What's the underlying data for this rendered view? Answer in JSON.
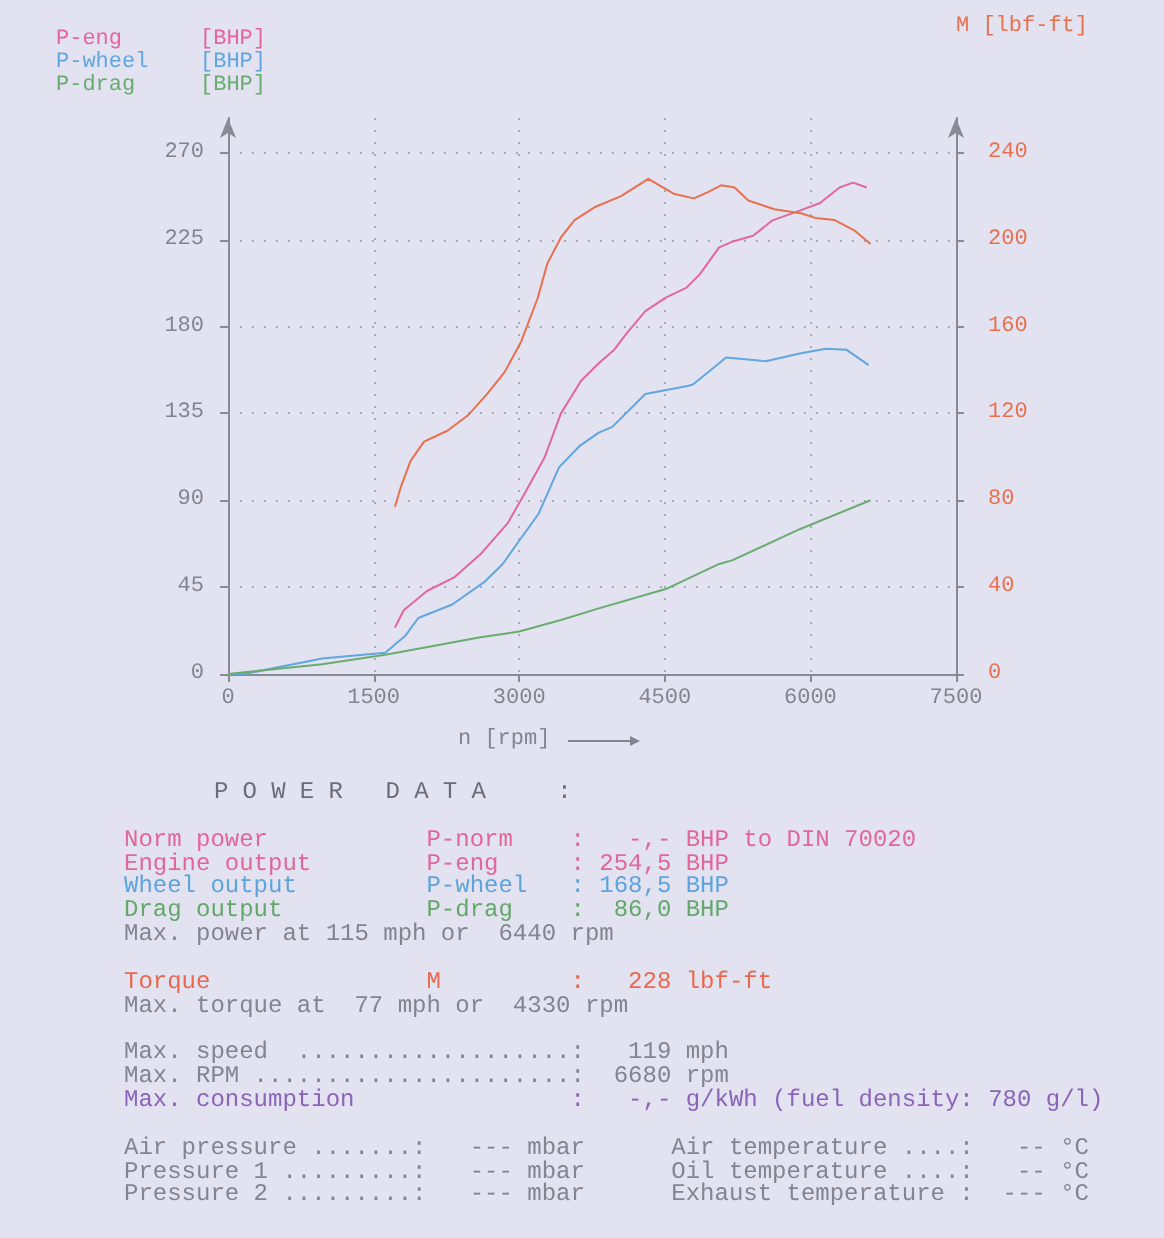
{
  "chart_data": {
    "type": "line",
    "xlabel": "n [rpm]",
    "ylabel": "[BHP]",
    "y2label": "M [lbf-ft]",
    "xlim": [
      0,
      7500
    ],
    "xticks": [
      0,
      1500,
      3000,
      4500,
      6000,
      7500
    ],
    "ylim": [
      0,
      288
    ],
    "yticks": [
      0,
      45,
      90,
      135,
      180,
      225,
      270
    ],
    "y2lim": [
      0,
      256
    ],
    "y2ticks": [
      0,
      40,
      80,
      120,
      160,
      200,
      240
    ],
    "grid": true,
    "legend": "top left",
    "marker": "none",
    "series": [
      {
        "name": "P-eng",
        "color": "#e2679c",
        "x": [
          1720,
          1810,
          2050,
          2330,
          2600,
          2880,
          3050,
          3260,
          3430,
          3640,
          3820,
          3980,
          4100,
          4300,
          4510,
          4720,
          4860,
          5060,
          5200,
          5410,
          5610,
          5890,
          6100,
          6300,
          6440,
          6580
        ],
        "values": [
          24,
          33,
          43,
          50,
          62,
          78,
          93,
          112,
          135,
          152,
          161,
          168,
          176,
          188,
          195,
          200,
          207,
          221,
          224,
          227,
          235,
          240,
          244,
          252,
          254.5,
          252
        ]
      },
      {
        "name": "P-wheel",
        "color": "#62a6de",
        "x": [
          0,
          170,
          970,
          1620,
          1830,
          1960,
          2310,
          2650,
          2830,
          3000,
          3200,
          3410,
          3620,
          3820,
          3960,
          4300,
          4720,
          4790,
          5060,
          5130,
          5540,
          5890,
          6160,
          6370,
          6600
        ],
        "values": [
          0,
          0,
          8,
          11,
          20,
          29,
          36,
          48,
          57,
          69,
          83,
          107,
          118,
          125,
          128,
          145,
          149,
          150,
          161,
          164,
          162,
          166,
          168.5,
          168,
          160
        ]
      },
      {
        "name": "P-drag",
        "color": "#6aac70",
        "x": [
          0,
          970,
          1620,
          2170,
          2600,
          3000,
          3430,
          3820,
          4510,
          5060,
          5200,
          5890,
          6620
        ],
        "values": [
          0,
          5,
          10,
          15,
          19,
          22,
          28,
          34,
          44,
          57,
          59,
          75,
          90
        ]
      },
      {
        "axis": "y2",
        "color": "#e8704f",
        "x": [
          1720,
          1780,
          1880,
          2020,
          2260,
          2470,
          2670,
          2850,
          3020,
          3190,
          3290,
          3430,
          3570,
          3780,
          4050,
          4330,
          4600,
          4800,
          4950,
          5080,
          5220,
          5360,
          5630,
          5910,
          6050,
          6250,
          6460,
          6620
        ],
        "values": [
          77,
          86,
          98,
          107,
          112,
          119,
          129,
          139,
          153,
          173,
          189,
          201,
          209,
          215,
          220,
          228,
          221,
          219,
          222,
          225,
          224,
          218,
          214,
          212,
          210,
          209,
          204,
          198
        ]
      }
    ],
    "annotations": [
      "POWER DATA  :",
      "Norm power           P-norm    :   -,- BHP to DIN 70020",
      "Engine output        P-eng     : 254,5 BHP",
      "Wheel output         P-wheel   : 168,5 BHP",
      "Drag output          P-drag    :  86,0 BHP",
      "Max. power at 115 mph or  6440 rpm",
      "Torque               M         :   228 lbf-ft",
      "Max. torque at  77 mph or  4330 rpm",
      "Max. speed  ...................:   119 mph",
      "Max. RPM ......................:  6680 rpm",
      "Max. consumption               :   -,- g/kWh (fuel density: 780 g/l)",
      "Air pressure .......:   --- mbar      Air temperature ....:   -- °C",
      "Pressure 1 .........:   --- mbar      Oil temperature ....:   -- °C",
      "Pressure 2 .........:   --- mbar      Exhaust temperature :  --- °C"
    ]
  }
}
